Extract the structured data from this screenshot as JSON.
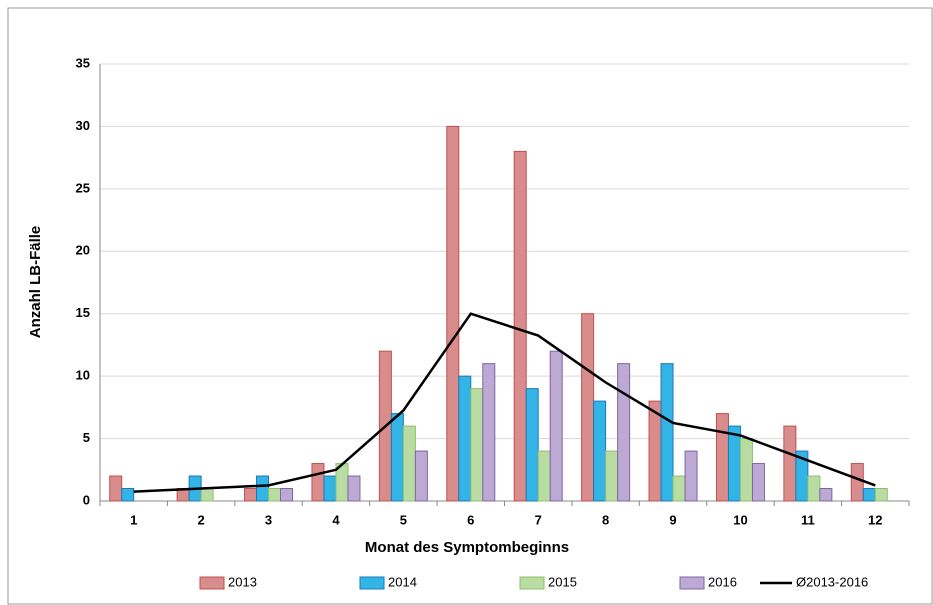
{
  "chart_data": {
    "type": "bar",
    "x_label": "Monat des Symptombeginns",
    "y_label": "Anzahl LB-Fälle",
    "categories": [
      "1",
      "2",
      "3",
      "4",
      "5",
      "6",
      "7",
      "8",
      "9",
      "10",
      "11",
      "12"
    ],
    "series": [
      {
        "name": "2013",
        "color": "#d98c8c",
        "stroke": "#c0504d",
        "values": [
          2,
          1,
          1,
          3,
          12,
          30,
          28,
          15,
          8,
          7,
          6,
          3
        ]
      },
      {
        "name": "2014",
        "color": "#33b4e6",
        "stroke": "#1f78b4",
        "values": [
          1,
          2,
          2,
          2,
          7,
          10,
          9,
          8,
          11,
          6,
          4,
          1
        ]
      },
      {
        "name": "2015",
        "color": "#b9dca2",
        "stroke": "#8fbf70",
        "values": [
          0,
          1,
          1,
          3,
          6,
          9,
          4,
          4,
          2,
          5,
          2,
          1
        ]
      },
      {
        "name": "2016",
        "color": "#bcaad4",
        "stroke": "#8064a2",
        "values": [
          0,
          0,
          1,
          2,
          4,
          11,
          12,
          11,
          4,
          3,
          1,
          0
        ]
      }
    ],
    "line": {
      "name": "Ø2013-2016",
      "color": "#000000",
      "values": [
        0.75,
        1,
        1.25,
        2.5,
        7.25,
        15,
        13.25,
        9.5,
        6.25,
        5.25,
        3.25,
        1.25
      ]
    },
    "ylim": [
      0,
      35
    ],
    "yticks": [
      0,
      5,
      10,
      15,
      20,
      25,
      30,
      35
    ],
    "grid": true
  }
}
